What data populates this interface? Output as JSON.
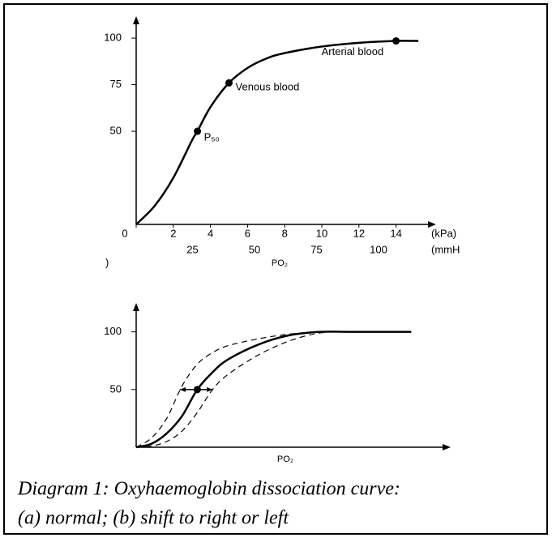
{
  "chart_data": [
    {
      "type": "line",
      "panel_label": ")",
      "x_label": "PO₂",
      "x_unit": "(kPa)",
      "x2_unit": "(mmH",
      "xlim": [
        0,
        15.5
      ],
      "xticks": [
        0,
        2,
        4,
        6,
        8,
        10,
        12,
        14
      ],
      "x2lim": [
        0,
        116
      ],
      "x2ticks": [
        25,
        50,
        75,
        100
      ],
      "ylim": [
        0,
        107
      ],
      "yticks": [
        50,
        75,
        100
      ],
      "x": [
        0,
        1,
        2,
        3,
        3.3,
        4,
        5,
        6,
        7,
        8,
        10,
        12,
        14,
        15.2
      ],
      "series": [
        {
          "color": "#000000",
          "style": "solid",
          "values": [
            0,
            10,
            25,
            45,
            50,
            63,
            76,
            84,
            89,
            92,
            95.5,
            97.5,
            98.5,
            98.5
          ]
        }
      ],
      "points": [
        {
          "label": "P₅₀",
          "x": 3.3,
          "y": 50
        },
        {
          "label": "Venous blood",
          "x": 5,
          "y": 76
        },
        {
          "label": "Arterial blood",
          "x": 14,
          "y": 98.5
        }
      ]
    },
    {
      "type": "line",
      "x_label": "PO₂",
      "xlim": [
        0,
        10
      ],
      "ylim": [
        0,
        118
      ],
      "yticks": [
        50,
        100
      ],
      "x": [
        0,
        0.5,
        1,
        1.5,
        2,
        2.5,
        3,
        4,
        5,
        6,
        7,
        9
      ],
      "series": [
        {
          "color": "#000000",
          "style": "solid",
          "values": [
            0,
            3,
            12,
            27,
            50,
            65,
            76,
            89,
            97,
            100,
            100,
            100
          ]
        },
        {
          "color": "#000000",
          "style": "dashed",
          "values": [
            0,
            8,
            25,
            53,
            72,
            82,
            88,
            94,
            98,
            100,
            100,
            100
          ]
        },
        {
          "color": "#000000",
          "style": "dashed",
          "values": [
            0,
            1,
            5,
            14,
            30,
            50,
            63,
            80,
            92,
            99,
            100,
            100
          ]
        }
      ],
      "points": [
        {
          "x": 2,
          "y": 50
        }
      ],
      "shift": {
        "x": [
          1.43,
          2.5
        ],
        "y": 50
      }
    }
  ],
  "caption": [
    "Diagram 1: Oxyhaemoglobin dissociation curve:",
    "(a) normal; (b) shift to right or left"
  ]
}
